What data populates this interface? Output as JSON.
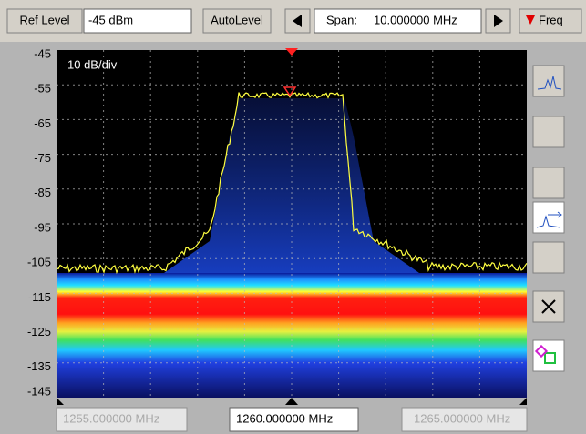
{
  "toolbar": {
    "ref_level_button": "Ref Level",
    "ref_level_value": "-45 dBm",
    "autolevel_button": "AutoLevel",
    "span_label": "Span:",
    "span_value": "10.000000 MHz",
    "freq_button": "Freq"
  },
  "plot": {
    "scale_label": "10 dB/div",
    "y_labels": [
      "-45",
      "-55",
      "-65",
      "-75",
      "-85",
      "-95",
      "-105",
      "-115",
      "-125",
      "-135",
      "-145"
    ]
  },
  "footer": {
    "start_freq": "1255.000000 MHz",
    "center_freq": "1260.000000 MHz",
    "stop_freq": "1265.000000 MHz"
  }
}
